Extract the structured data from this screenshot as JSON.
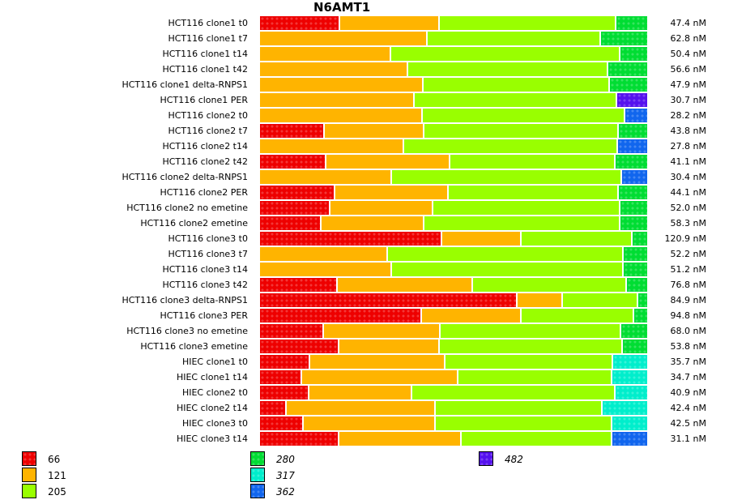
{
  "chart_data": {
    "type": "bar",
    "orientation": "horizontal",
    "stacked": "percent",
    "title": "N6AMT1",
    "xlabel": "",
    "ylabel": "",
    "value_unit": "nM",
    "legend_position": "bottom",
    "series": [
      {
        "name": "66",
        "color": "#ee0000",
        "patterned": true,
        "italic": false
      },
      {
        "name": "121",
        "color": "#ffb400",
        "patterned": false,
        "italic": false
      },
      {
        "name": "205",
        "color": "#99ff00",
        "patterned": false,
        "italic": false
      },
      {
        "name": "280",
        "color": "#00dd33",
        "patterned": true,
        "italic": true
      },
      {
        "name": "317",
        "color": "#00eecc",
        "patterned": true,
        "italic": true
      },
      {
        "name": "362",
        "color": "#1166ee",
        "patterned": true,
        "italic": true
      },
      {
        "name": "482",
        "color": "#5511ee",
        "patterned": true,
        "italic": true
      }
    ],
    "rows": [
      {
        "label": "HCT116 clone1 t0",
        "value": "47.4 nM",
        "segments": {
          "66": 20.6,
          "121": 25.6,
          "205": 45.4,
          "280": 8.4
        }
      },
      {
        "label": "HCT116 clone1 t7",
        "value": "62.8 nM",
        "segments": {
          "121": 43.1,
          "205": 44.6,
          "280": 12.3
        }
      },
      {
        "label": "HCT116 clone1 t14",
        "value": "50.4 nM",
        "segments": {
          "121": 33.8,
          "205": 58.9,
          "280": 7.3
        }
      },
      {
        "label": "HCT116 clone1 t42",
        "value": "56.6 nM",
        "segments": {
          "121": 38.1,
          "205": 51.4,
          "280": 10.5
        }
      },
      {
        "label": "HCT116 clone1 delta-RNPS1",
        "value": "47.9 nM",
        "segments": {
          "121": 42.1,
          "205": 47.9,
          "280": 10.0
        }
      },
      {
        "label": "HCT116 clone1 PER",
        "value": "30.7 nM",
        "segments": {
          "121": 39.8,
          "205": 52.1,
          "482": 8.1
        }
      },
      {
        "label": "HCT116 clone2 t0",
        "value": "28.2 nM",
        "segments": {
          "121": 41.9,
          "205": 52.1,
          "362": 6.0
        }
      },
      {
        "label": "HCT116 clone2 t7",
        "value": "43.8 nM",
        "segments": {
          "66": 16.7,
          "121": 25.6,
          "205": 50.0,
          "280": 7.7
        }
      },
      {
        "label": "HCT116 clone2 t14",
        "value": "27.8 nM",
        "segments": {
          "121": 37.1,
          "205": 55.0,
          "362": 7.9
        }
      },
      {
        "label": "HCT116 clone2 t42",
        "value": "41.1 nM",
        "segments": {
          "66": 17.1,
          "121": 31.9,
          "205": 42.5,
          "280": 8.5
        }
      },
      {
        "label": "HCT116 clone2 delta-RNPS1",
        "value": "30.4 nM",
        "segments": {
          "121": 34.0,
          "205": 59.2,
          "362": 6.8
        }
      },
      {
        "label": "HCT116 clone2 PER",
        "value": "44.1 nM",
        "segments": {
          "66": 19.4,
          "121": 29.2,
          "205": 43.7,
          "280": 7.7
        }
      },
      {
        "label": "HCT116 clone2 no emetine",
        "value": "52.0 nM",
        "segments": {
          "66": 18.1,
          "121": 26.5,
          "205": 48.1,
          "280": 7.3
        }
      },
      {
        "label": "HCT116 clone2 emetine",
        "value": "58.3 nM",
        "segments": {
          "66": 15.8,
          "121": 26.5,
          "205": 50.4,
          "280": 7.3
        }
      },
      {
        "label": "HCT116 clone3 t0",
        "value": "120.9 nM",
        "segments": {
          "66": 46.9,
          "121": 20.4,
          "205": 28.5,
          "280": 4.2
        }
      },
      {
        "label": "HCT116 clone3 t7",
        "value": "52.2 nM",
        "segments": {
          "121": 32.9,
          "205": 60.6,
          "280": 6.5
        }
      },
      {
        "label": "HCT116 clone3 t14",
        "value": "51.2 nM",
        "segments": {
          "121": 34.0,
          "205": 59.6,
          "280": 6.4
        }
      },
      {
        "label": "HCT116 clone3 t42",
        "value": "76.8 nM",
        "segments": {
          "66": 20.0,
          "121": 34.8,
          "205": 39.6,
          "280": 5.6
        }
      },
      {
        "label": "HCT116 clone3 delta-RNPS1",
        "value": "84.9 nM",
        "segments": {
          "66": 66.2,
          "121": 11.7,
          "205": 19.4,
          "280": 2.7
        }
      },
      {
        "label": "HCT116 clone3 PER",
        "value": "94.8 nM",
        "segments": {
          "66": 41.7,
          "121": 25.6,
          "205": 29.0,
          "280": 3.7
        }
      },
      {
        "label": "HCT116 clone3 no emetine",
        "value": "68.0 nM",
        "segments": {
          "66": 16.5,
          "121": 30.0,
          "205": 46.5,
          "280": 7.0
        }
      },
      {
        "label": "HCT116 clone3 emetine",
        "value": "53.8 nM",
        "segments": {
          "66": 20.4,
          "121": 25.8,
          "205": 47.1,
          "280": 6.7
        }
      },
      {
        "label": "HIEC clone1 t0",
        "value": "35.7 nM",
        "segments": {
          "66": 12.9,
          "121": 34.8,
          "205": 43.1,
          "317": 9.2
        }
      },
      {
        "label": "HIEC clone1 t14",
        "value": "34.7 nM",
        "segments": {
          "66": 10.8,
          "121": 40.2,
          "205": 39.6,
          "317": 9.4
        }
      },
      {
        "label": "HIEC clone2 t0",
        "value": "40.9 nM",
        "segments": {
          "66": 12.7,
          "121": 26.5,
          "205": 52.3,
          "317": 8.5
        }
      },
      {
        "label": "HIEC clone2 t14",
        "value": "42.4 nM",
        "segments": {
          "66": 7.5,
          "121": 42.3,
          "205": 47.1,
          "317": 13.1
        }
      },
      {
        "label": "HIEC clone3 t0",
        "value": "42.5 nM",
        "segments": {
          "66": 11.3,
          "121": 34.0,
          "205": 45.4,
          "317": 9.3
        }
      },
      {
        "label": "HIEC clone3 t14",
        "value": "31.1 nM",
        "segments": {
          "66": 20.4,
          "121": 31.5,
          "205": 38.8,
          "362": 9.3
        }
      }
    ],
    "legend_columns": [
      [
        "66",
        "121",
        "205"
      ],
      [
        "280",
        "317",
        "362"
      ],
      [
        "482"
      ]
    ]
  }
}
